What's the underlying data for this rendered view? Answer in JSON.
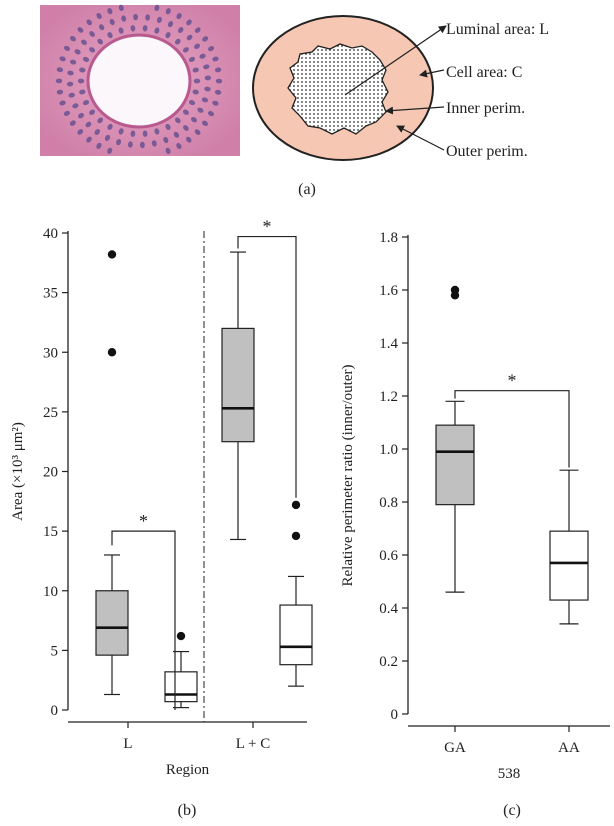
{
  "panels": {
    "a": {
      "label": "(a)",
      "annotations": [
        "Luminal area: L",
        "Cell area: C",
        "Inner perim.",
        "Outer perim."
      ],
      "colors": {
        "cell_area": "#f6c8b4",
        "lumen": "#ffffff",
        "tissue": "#d890b6"
      }
    },
    "b": {
      "label": "(b)"
    },
    "c": {
      "label": "(c)"
    }
  },
  "chart_data": [
    {
      "type": "box",
      "panel": "b",
      "title": "",
      "xlabel": "Region",
      "ylabel": "Area (×10³ μm²)",
      "ylim": [
        0,
        40
      ],
      "yticks": [
        0,
        5,
        10,
        15,
        20,
        25,
        30,
        35,
        40
      ],
      "categories": [
        "L",
        "L + C"
      ],
      "colors": {
        "filled": "#c0c0c0",
        "open": "#ffffff"
      },
      "boxes": [
        {
          "category": "L",
          "fill": "filled",
          "whisker_low": 1.3,
          "q1": 4.6,
          "median": 6.9,
          "q3": 10.0,
          "whisker_high": 13.0,
          "outliers": [
            30.0,
            38.2
          ]
        },
        {
          "category": "L",
          "fill": "open",
          "whisker_low": 0.2,
          "q1": 0.7,
          "median": 1.3,
          "q3": 3.2,
          "whisker_high": 4.9,
          "outliers": [
            6.2
          ]
        },
        {
          "category": "L + C",
          "fill": "filled",
          "whisker_low": 14.3,
          "q1": 22.5,
          "median": 25.3,
          "q3": 32.0,
          "whisker_high": 38.4,
          "outliers": []
        },
        {
          "category": "L + C",
          "fill": "open",
          "whisker_low": 2.0,
          "q1": 3.8,
          "median": 5.3,
          "q3": 8.8,
          "whisker_high": 11.2,
          "outliers": [
            14.6,
            17.2
          ]
        }
      ],
      "significance": [
        {
          "category": "L",
          "label": "*",
          "level": 15.0
        },
        {
          "category": "L + C",
          "label": "*",
          "level": 39.7
        }
      ]
    },
    {
      "type": "box",
      "panel": "c",
      "title": "",
      "xlabel": "538",
      "ylabel": "Relative perimeter ratio (inner/outer)",
      "ylim": [
        0,
        1.8
      ],
      "yticks": [
        "0",
        "0.2",
        "0.4",
        "0.6",
        "0.8",
        "1.0",
        "1.2",
        "1.4",
        "1.6",
        "1.8"
      ],
      "categories": [
        "GA",
        "AA"
      ],
      "colors": {
        "filled": "#c0c0c0",
        "open": "#ffffff"
      },
      "boxes": [
        {
          "category": "GA",
          "fill": "filled",
          "whisker_low": 0.46,
          "q1": 0.79,
          "median": 0.99,
          "q3": 1.09,
          "whisker_high": 1.18,
          "outliers": [
            1.58,
            1.6
          ]
        },
        {
          "category": "AA",
          "fill": "open",
          "whisker_low": 0.34,
          "q1": 0.43,
          "median": 0.57,
          "q3": 0.69,
          "whisker_high": 0.92,
          "outliers": []
        }
      ],
      "significance": [
        {
          "from": "GA",
          "to": "AA",
          "label": "*",
          "level": 1.22
        }
      ]
    }
  ]
}
